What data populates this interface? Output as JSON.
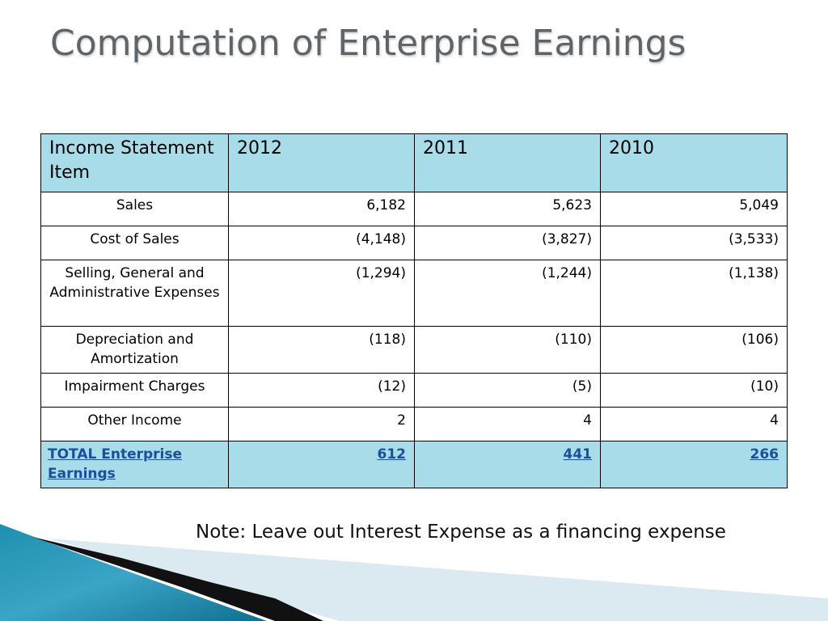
{
  "slide": {
    "title": "Computation of Enterprise Earnings",
    "note": "Note: Leave out Interest Expense as a financing expense"
  },
  "table": {
    "headers": [
      "Income Statement Item",
      "2012",
      "2011",
      "2010"
    ],
    "rows": [
      {
        "label": "Sales",
        "values": [
          "6,182",
          "5,623",
          "5,049"
        ]
      },
      {
        "label": "Cost of Sales",
        "values": [
          "(4,148)",
          "(3,827)",
          "(3,533)"
        ]
      },
      {
        "label": "Selling, General and Administrative Expenses",
        "values": [
          "(1,294)",
          "(1,244)",
          "(1,138)"
        ]
      },
      {
        "label": "Depreciation and Amortization",
        "values": [
          "(118)",
          "(110)",
          "(106)"
        ]
      },
      {
        "label": "Impairment Charges",
        "values": [
          "(12)",
          "(5)",
          "(10)"
        ]
      },
      {
        "label": "Other Income",
        "values": [
          "2",
          "4",
          "4"
        ]
      }
    ],
    "total": {
      "label": "TOTAL Enterprise Earnings",
      "values": [
        "612",
        "441",
        "266"
      ]
    }
  },
  "colors": {
    "header_fill": "#a8dce9",
    "total_text": "#1a4f9e",
    "title_text": "#5f6468"
  }
}
